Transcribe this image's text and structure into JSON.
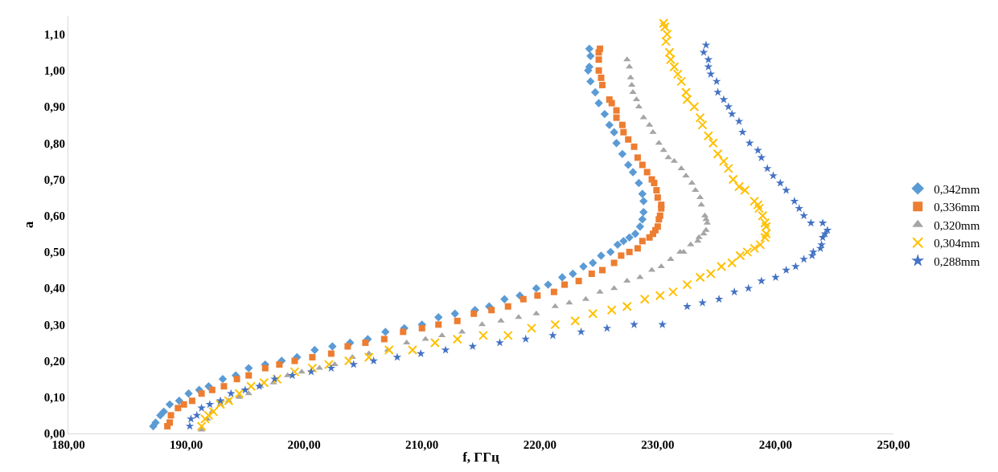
{
  "chart_data": {
    "type": "scatter",
    "xlabel": "f, ГГц",
    "ylabel": "a",
    "xlim": [
      180,
      250
    ],
    "ylim": [
      0,
      1.15
    ],
    "xticks": [
      {
        "value": 180,
        "label": "180,00"
      },
      {
        "value": 190,
        "label": "190,00"
      },
      {
        "value": 200,
        "label": "200,00"
      },
      {
        "value": 210,
        "label": "210,00"
      },
      {
        "value": 220,
        "label": "220,00"
      },
      {
        "value": 230,
        "label": "230,00"
      },
      {
        "value": 240,
        "label": "240,00"
      },
      {
        "value": 250,
        "label": "250,00"
      }
    ],
    "yticks": [
      {
        "value": 0,
        "label": "0,00"
      },
      {
        "value": 0.1,
        "label": "0,10"
      },
      {
        "value": 0.2,
        "label": "0,20"
      },
      {
        "value": 0.3,
        "label": "0,30"
      },
      {
        "value": 0.4,
        "label": "0,40"
      },
      {
        "value": 0.5,
        "label": "0,50"
      },
      {
        "value": 0.6,
        "label": "0,60"
      },
      {
        "value": 0.7,
        "label": "0,70"
      },
      {
        "value": 0.8,
        "label": "0,80"
      },
      {
        "value": 0.9,
        "label": "0,90"
      },
      {
        "value": 1.0,
        "label": "1,00"
      },
      {
        "value": 1.1,
        "label": "1,10"
      }
    ],
    "legend": "right",
    "series": [
      {
        "name": "0,342mm",
        "color": "#5b9bd5",
        "marker": "diamond",
        "x": [
          187.2,
          187.4,
          187.8,
          188.1,
          188.6,
          189.4,
          190.2,
          191.1,
          191.9,
          193.1,
          194.2,
          195.3,
          196.7,
          198.1,
          199.4,
          200.9,
          202.4,
          203.9,
          205.4,
          206.9,
          208.5,
          210.0,
          211.4,
          212.8,
          214.5,
          215.7,
          217.0,
          218.3,
          219.7,
          220.7,
          221.9,
          222.8,
          223.7,
          224.5,
          225.2,
          226.0,
          226.6,
          227.1,
          227.6,
          228.1,
          228.5,
          228.7,
          228.8,
          228.8,
          228.7,
          228.4,
          227.9,
          227.5,
          227.0,
          226.5,
          226.3,
          225.9,
          225.5,
          225.0,
          224.7,
          224.3,
          224.1,
          224.2,
          224.3,
          224.2
        ],
        "values": [
          0.02,
          0.03,
          0.05,
          0.06,
          0.08,
          0.09,
          0.11,
          0.12,
          0.13,
          0.15,
          0.16,
          0.18,
          0.19,
          0.2,
          0.21,
          0.23,
          0.24,
          0.25,
          0.26,
          0.28,
          0.29,
          0.3,
          0.32,
          0.33,
          0.34,
          0.35,
          0.37,
          0.38,
          0.4,
          0.41,
          0.43,
          0.44,
          0.46,
          0.47,
          0.49,
          0.5,
          0.52,
          0.53,
          0.54,
          0.55,
          0.57,
          0.59,
          0.61,
          0.64,
          0.66,
          0.69,
          0.72,
          0.74,
          0.77,
          0.8,
          0.83,
          0.85,
          0.88,
          0.91,
          0.94,
          0.97,
          1.0,
          1.01,
          1.04,
          1.06
        ]
      },
      {
        "name": "0,336mm",
        "color": "#ed7d31",
        "marker": "square",
        "x": [
          188.4,
          188.6,
          188.7,
          189.3,
          189.8,
          190.5,
          191.3,
          192.2,
          193.2,
          194.3,
          195.3,
          196.7,
          197.9,
          199.2,
          200.7,
          202.3,
          203.7,
          205.2,
          206.8,
          208.4,
          210.0,
          211.4,
          213.0,
          214.4,
          215.9,
          217.3,
          218.6,
          219.8,
          221.2,
          222.1,
          223.3,
          224.4,
          225.3,
          226.3,
          226.9,
          227.6,
          228.3,
          228.7,
          229.3,
          229.6,
          229.8,
          230.0,
          230.1,
          230.2,
          230.3,
          230.3,
          230.0,
          229.9,
          229.7,
          229.5,
          229.1,
          228.7,
          228.3,
          228.0,
          227.5,
          227.1,
          227.0,
          226.5,
          226.5,
          226.1,
          225.9,
          225.3,
          225.2,
          225.0,
          225.0,
          225.0,
          225.1
        ],
        "values": [
          0.02,
          0.03,
          0.05,
          0.07,
          0.08,
          0.09,
          0.11,
          0.12,
          0.13,
          0.15,
          0.16,
          0.18,
          0.19,
          0.2,
          0.21,
          0.22,
          0.24,
          0.25,
          0.26,
          0.28,
          0.29,
          0.3,
          0.31,
          0.33,
          0.34,
          0.35,
          0.37,
          0.38,
          0.39,
          0.41,
          0.42,
          0.44,
          0.45,
          0.47,
          0.49,
          0.5,
          0.51,
          0.53,
          0.54,
          0.55,
          0.56,
          0.57,
          0.59,
          0.6,
          0.62,
          0.63,
          0.65,
          0.67,
          0.69,
          0.7,
          0.72,
          0.74,
          0.76,
          0.79,
          0.81,
          0.83,
          0.85,
          0.87,
          0.89,
          0.91,
          0.92,
          0.96,
          0.98,
          1.0,
          1.03,
          1.05,
          1.06
        ]
      },
      {
        "name": "0,320mm",
        "color": "#a5a5a5",
        "marker": "triangle",
        "x": [
          191.3,
          191.8,
          192.2,
          192.9,
          193.6,
          194.5,
          195.3,
          196.3,
          197.4,
          198.6,
          199.8,
          201.3,
          202.6,
          204.1,
          205.5,
          207.1,
          208.7,
          210.3,
          211.7,
          213.4,
          215.1,
          216.7,
          218.2,
          219.7,
          221.3,
          222.5,
          223.9,
          225.1,
          226.3,
          227.4,
          228.5,
          229.5,
          230.3,
          231.1,
          231.9,
          232.2,
          232.8,
          233.4,
          233.5,
          233.9,
          234.1,
          234.2,
          234.1,
          234.0,
          233.7,
          233.6,
          233.2,
          232.9,
          232.4,
          232.0,
          231.4,
          230.9,
          230.5,
          230.1,
          229.6,
          229.3,
          228.8,
          228.4,
          228.2,
          227.9,
          227.8,
          227.7,
          227.6,
          227.4
        ],
        "values": [
          0.01,
          0.04,
          0.06,
          0.08,
          0.09,
          0.1,
          0.11,
          0.13,
          0.14,
          0.16,
          0.17,
          0.18,
          0.19,
          0.21,
          0.22,
          0.23,
          0.25,
          0.26,
          0.27,
          0.28,
          0.3,
          0.31,
          0.32,
          0.33,
          0.35,
          0.36,
          0.37,
          0.39,
          0.4,
          0.42,
          0.43,
          0.45,
          0.46,
          0.48,
          0.5,
          0.5,
          0.52,
          0.53,
          0.54,
          0.55,
          0.56,
          0.58,
          0.59,
          0.6,
          0.63,
          0.65,
          0.67,
          0.69,
          0.71,
          0.73,
          0.75,
          0.76,
          0.78,
          0.8,
          0.83,
          0.85,
          0.87,
          0.9,
          0.92,
          0.94,
          0.96,
          0.98,
          1.01,
          1.03
        ]
      },
      {
        "name": "0,304mm",
        "color": "#ffc000",
        "marker": "cross",
        "x": [
          191.3,
          191.6,
          191.9,
          192.3,
          192.9,
          193.6,
          194.5,
          195.5,
          196.6,
          197.7,
          199.2,
          200.7,
          202.1,
          203.8,
          205.5,
          207.2,
          209.2,
          211.1,
          213.0,
          215.2,
          217.3,
          219.3,
          221.3,
          223.0,
          224.5,
          226.1,
          227.4,
          228.9,
          230.2,
          231.3,
          232.5,
          233.6,
          234.5,
          235.4,
          236.3,
          237.0,
          237.6,
          238.2,
          238.7,
          239.1,
          239.2,
          239.2,
          239.1,
          238.9,
          238.6,
          238.5,
          238.2,
          237.4,
          236.9,
          236.4,
          236.0,
          235.6,
          235.1,
          234.7,
          234.3,
          233.8,
          233.6,
          233.1,
          232.5,
          232.4,
          232.0,
          231.7,
          231.4,
          231.1,
          231.0,
          230.7,
          230.8,
          230.6,
          230.5
        ],
        "values": [
          0.02,
          0.04,
          0.05,
          0.06,
          0.08,
          0.09,
          0.11,
          0.13,
          0.14,
          0.15,
          0.17,
          0.18,
          0.19,
          0.2,
          0.21,
          0.23,
          0.23,
          0.25,
          0.26,
          0.27,
          0.27,
          0.29,
          0.3,
          0.31,
          0.33,
          0.34,
          0.35,
          0.37,
          0.38,
          0.39,
          0.41,
          0.43,
          0.44,
          0.46,
          0.47,
          0.49,
          0.5,
          0.51,
          0.52,
          0.54,
          0.55,
          0.57,
          0.58,
          0.6,
          0.62,
          0.63,
          0.64,
          0.67,
          0.68,
          0.7,
          0.73,
          0.75,
          0.77,
          0.8,
          0.82,
          0.85,
          0.87,
          0.9,
          0.92,
          0.94,
          0.97,
          0.99,
          1.01,
          1.03,
          1.05,
          1.08,
          1.1,
          1.12,
          1.13
        ]
      },
      {
        "name": "0,288mm",
        "color": "#4472c4",
        "marker": "star",
        "x": [
          190.3,
          190.4,
          190.9,
          191.3,
          192.0,
          192.9,
          193.8,
          195.0,
          196.2,
          197.5,
          199.0,
          200.6,
          202.3,
          204.2,
          205.9,
          207.9,
          209.9,
          212.0,
          214.3,
          216.6,
          218.8,
          221.1,
          223.5,
          225.7,
          228.0,
          230.4,
          232.5,
          233.8,
          235.2,
          236.5,
          237.7,
          238.8,
          240.0,
          240.9,
          241.7,
          242.4,
          243.1,
          243.2,
          243.8,
          243.9,
          244.0,
          244.2,
          244.4,
          244.0,
          243.0,
          242.4,
          242.0,
          241.6,
          240.9,
          240.4,
          239.8,
          239.3,
          238.8,
          238.5,
          237.8,
          237.2,
          236.9,
          236.3,
          236.0,
          235.6,
          235.1,
          235.0,
          234.5,
          234.3,
          234.3,
          233.9,
          234.1
        ],
        "values": [
          0.02,
          0.04,
          0.05,
          0.07,
          0.08,
          0.09,
          0.11,
          0.12,
          0.13,
          0.15,
          0.16,
          0.17,
          0.18,
          0.19,
          0.2,
          0.21,
          0.22,
          0.23,
          0.24,
          0.25,
          0.26,
          0.27,
          0.28,
          0.29,
          0.3,
          0.3,
          0.35,
          0.36,
          0.37,
          0.39,
          0.4,
          0.42,
          0.43,
          0.45,
          0.46,
          0.48,
          0.49,
          0.5,
          0.51,
          0.52,
          0.54,
          0.55,
          0.56,
          0.58,
          0.58,
          0.6,
          0.62,
          0.64,
          0.67,
          0.69,
          0.71,
          0.73,
          0.76,
          0.78,
          0.8,
          0.83,
          0.86,
          0.88,
          0.9,
          0.92,
          0.94,
          0.97,
          0.99,
          1.01,
          1.03,
          1.05,
          1.07
        ]
      }
    ]
  }
}
